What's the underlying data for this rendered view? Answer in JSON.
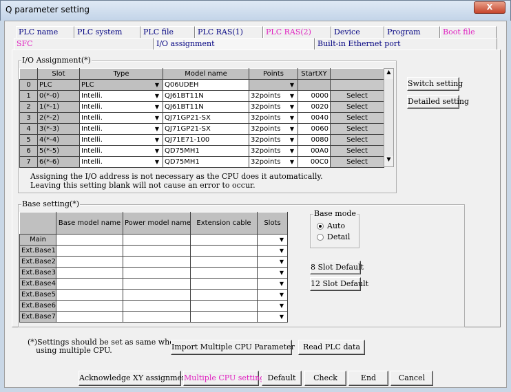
{
  "window": {
    "title": "Q parameter setting",
    "close_label": "X"
  },
  "tabs_row1": [
    {
      "label": "PLC name",
      "color": "#000080"
    },
    {
      "label": "PLC system",
      "color": "#000080"
    },
    {
      "label": "PLC file",
      "color": "#000080"
    },
    {
      "label": "PLC RAS(1)",
      "color": "#000080"
    },
    {
      "label": "PLC RAS(2)",
      "color": "#e020c0"
    },
    {
      "label": "Device",
      "color": "#000080"
    },
    {
      "label": "Program",
      "color": "#000080"
    },
    {
      "label": "Boot file",
      "color": "#e020c0"
    }
  ],
  "tabs_row2": [
    {
      "label": "SFC",
      "color": "#e020c0"
    },
    {
      "label": "I/O assignment",
      "color": "#000080",
      "selected": true
    },
    {
      "label": "Built-in Ethernet port",
      "color": "#000080"
    }
  ],
  "io": {
    "group_label": "I/O Assignment(*)",
    "headers": [
      "Slot",
      "Type",
      "Model name",
      "Points",
      "StartXY"
    ],
    "rows": [
      {
        "no": "0",
        "slot": "PLC",
        "type": "PLC",
        "model": "Q06UDEH",
        "points": "",
        "start": "",
        "select": ""
      },
      {
        "no": "1",
        "slot": "0(*-0)",
        "type": "Intelli.",
        "model": "QJ61BT11N",
        "points": "32points",
        "start": "0000",
        "select": "Select"
      },
      {
        "no": "2",
        "slot": "1(*-1)",
        "type": "Intelli.",
        "model": "QJ61BT11N",
        "points": "32points",
        "start": "0020",
        "select": "Select"
      },
      {
        "no": "3",
        "slot": "2(*-2)",
        "type": "Intelli.",
        "model": "QJ71GP21-SX",
        "points": "32points",
        "start": "0040",
        "select": "Select"
      },
      {
        "no": "4",
        "slot": "3(*-3)",
        "type": "Intelli.",
        "model": "QJ71GP21-SX",
        "points": "32points",
        "start": "0060",
        "select": "Select"
      },
      {
        "no": "5",
        "slot": "4(*-4)",
        "type": "Intelli.",
        "model": "QJ71E71-100",
        "points": "32points",
        "start": "0080",
        "select": "Select"
      },
      {
        "no": "6",
        "slot": "5(*-5)",
        "type": "Intelli.",
        "model": "QD75MH1",
        "points": "32points",
        "start": "00A0",
        "select": "Select"
      },
      {
        "no": "7",
        "slot": "6(*-6)",
        "type": "Intelli.",
        "model": "QD75MH1",
        "points": "32points",
        "start": "00C0",
        "select": "Select"
      }
    ],
    "note1": "Assigning the I/O address is not necessary as the CPU does it automatically.",
    "note2": "Leaving this setting blank will not cause an error to occur.",
    "switch_setting": "Switch setting",
    "detailed_setting": "Detailed setting"
  },
  "base": {
    "group_label": "Base setting(*)",
    "headers": [
      "Base model name",
      "Power model name",
      "Extension cable",
      "Slots"
    ],
    "rows": [
      "Main",
      "Ext.Base1",
      "Ext.Base2",
      "Ext.Base3",
      "Ext.Base4",
      "Ext.Base5",
      "Ext.Base6",
      "Ext.Base7"
    ],
    "mode_label": "Base mode",
    "mode_auto": "Auto",
    "mode_detail": "Detail",
    "mode_selected": "Auto",
    "slot8": "8 Slot Default",
    "slot12": "12 Slot Default"
  },
  "footer": {
    "note1": "(*)Settings should be set as same when",
    "note2": "using multiple CPU.",
    "import": "Import Multiple CPU Parameter",
    "read": "Read PLC data"
  },
  "buttons": {
    "ack": "Acknowledge XY assignment",
    "multi": "Multiple CPU settings",
    "default": "Default",
    "check": "Check",
    "end": "End",
    "cancel": "Cancel"
  }
}
